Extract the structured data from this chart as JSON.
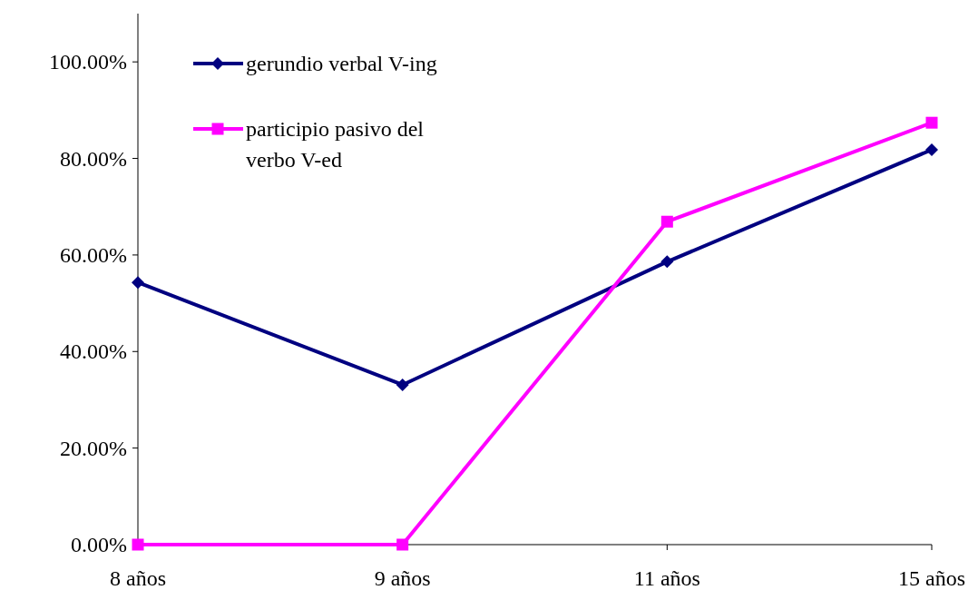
{
  "chart_data": {
    "type": "line",
    "categories": [
      "8 años",
      "9 años",
      "11 años",
      "15 años"
    ],
    "series": [
      {
        "name": "gerundio verbal V-ing",
        "color": "#000080",
        "values": [
          54.3,
          33.1,
          58.6,
          81.8
        ],
        "marker": "diamond"
      },
      {
        "name": "participio pasivo del verbo V-ed",
        "color": "#ff00ff",
        "values": [
          0,
          0,
          66.9,
          87.4
        ],
        "marker": "square"
      }
    ],
    "ylim": [
      0,
      110
    ],
    "yticks": [
      {
        "value": 0,
        "label": "0.00%"
      },
      {
        "value": 20,
        "label": "20.00%"
      },
      {
        "value": 40,
        "label": "40.00%"
      },
      {
        "value": 60,
        "label": "60.00%"
      },
      {
        "value": 80,
        "label": "80.00%"
      },
      {
        "value": 100,
        "label": "100.00%"
      }
    ],
    "legend": "top left",
    "grid": false,
    "line_style": "solid"
  }
}
